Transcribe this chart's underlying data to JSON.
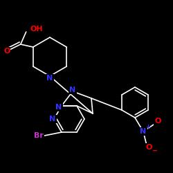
{
  "background_color": "#000000",
  "bond_color": "#ffffff",
  "atom_colors": {
    "N": "#3333ff",
    "O": "#ff0000",
    "Br": "#cc33cc",
    "C": "#ffffff"
  },
  "figsize": [
    2.5,
    2.5
  ],
  "dpi": 100
}
